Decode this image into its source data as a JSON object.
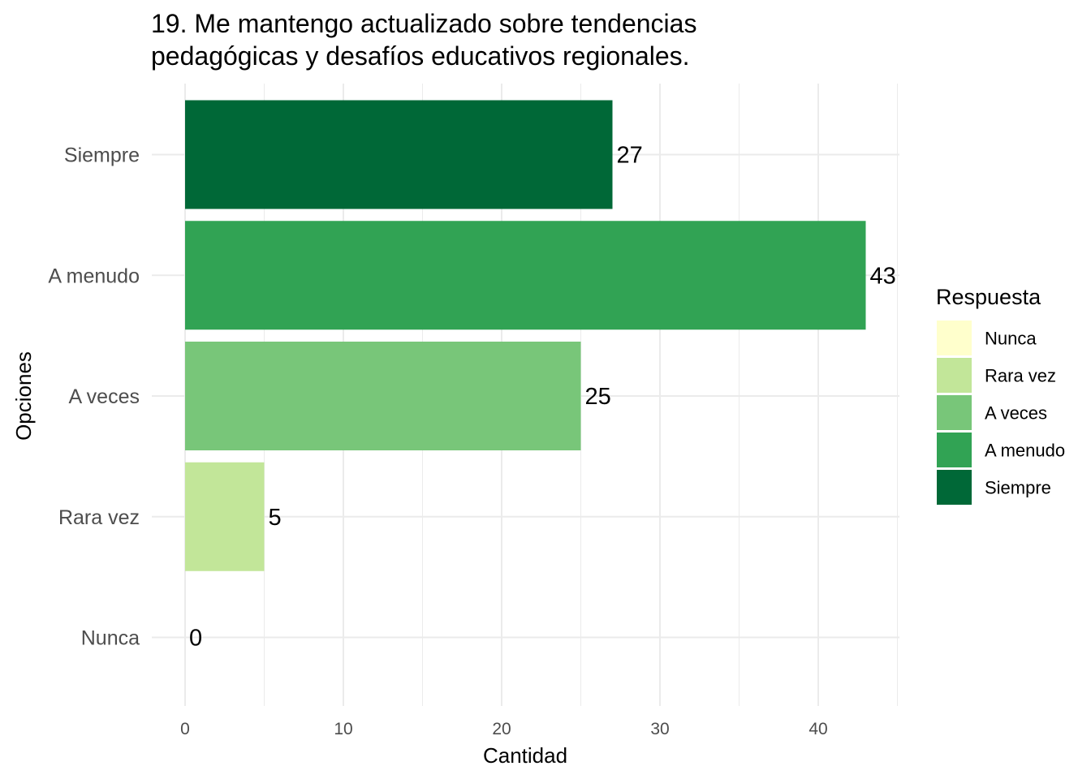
{
  "chart_data": {
    "type": "bar",
    "orientation": "horizontal",
    "title_lines": [
      "19. Me mantengo actualizado sobre tendencias",
      "pedagógicas y desafíos educativos regionales."
    ],
    "xlabel": "Cantidad",
    "ylabel": "Opciones",
    "categories": [
      "Nunca",
      "Rara vez",
      "A veces",
      "A menudo",
      "Siempre"
    ],
    "values": [
      0,
      5,
      25,
      43,
      27
    ],
    "data_labels": [
      "0",
      "5",
      "25",
      "43",
      "27"
    ],
    "colors": [
      "#ffffcc",
      "#c2e699",
      "#78c679",
      "#31a354",
      "#006837"
    ],
    "xlim": [
      0,
      45
    ],
    "x_ticks": [
      0,
      10,
      20,
      30,
      40
    ],
    "x_tick_labels": [
      "0",
      "10",
      "20",
      "30",
      "40"
    ],
    "grid": true,
    "legend": {
      "title": "Respuesta",
      "position": "right",
      "items": [
        "Nunca",
        "Rara vez",
        "A veces",
        "A menudo",
        "Siempre"
      ]
    }
  }
}
